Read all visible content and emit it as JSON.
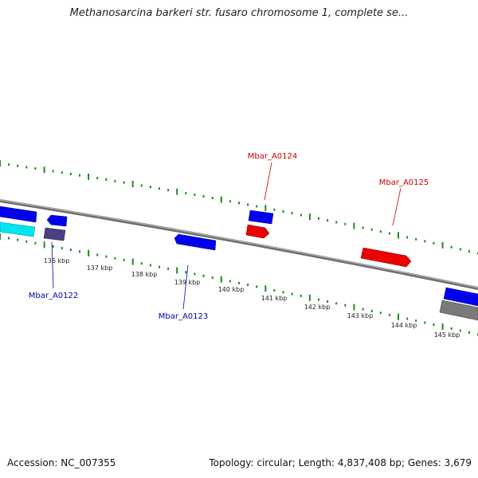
{
  "title": "Methanosarcina barkeri str. fusaro chromosome 1, complete se...",
  "footer": {
    "accession": "Accession: NC_007355",
    "summary": "Topology: circular; Length: 4,837,408 bp; Genes: 3,679"
  },
  "colors": {
    "tick": "#1f8a1f",
    "backbone": "#8a8a8a",
    "forward_gene": "#0000ee",
    "reverse_gene": "#ee0000",
    "forward_label": "#0000aa",
    "reverse_label": "#cc0000",
    "cyan_feature": "#00e5ee",
    "gray_feature": "#7a7a7a",
    "purple_feature": "#4a4080"
  },
  "scale_labels": [
    "136 kbp",
    "137 kbp",
    "138 kbp",
    "139 kbp",
    "140 kbp",
    "141 kbp",
    "142 kbp",
    "143 kbp",
    "144 kbp",
    "145 kbp"
  ],
  "gene_labels": {
    "a0122": "Mbar_A0122",
    "a0123": "Mbar_A0123",
    "a0124": "Mbar_A0124",
    "a0125": "Mbar_A0125"
  }
}
